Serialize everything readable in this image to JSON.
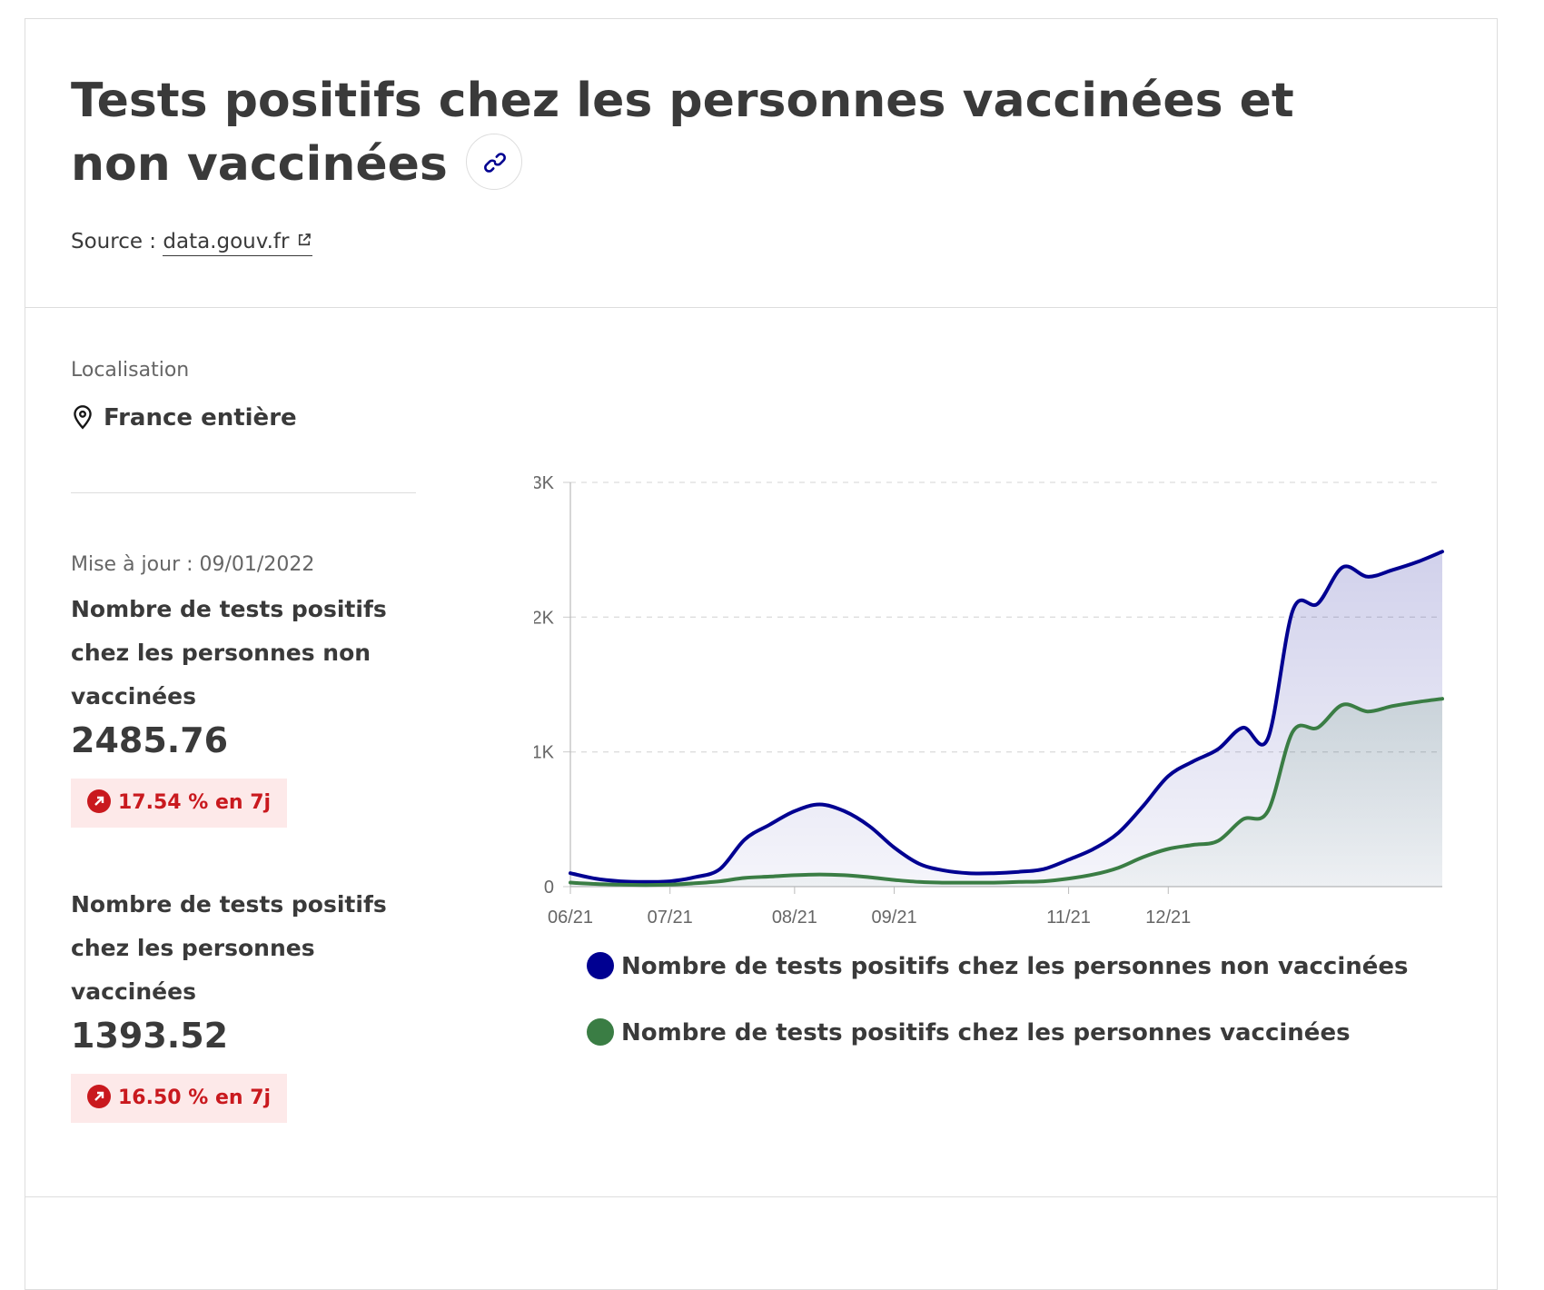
{
  "header": {
    "title": "Tests positifs chez les personnes vaccinées et non vaccinées",
    "source_prefix": "Source : ",
    "source_link": "data.gouv.fr"
  },
  "location": {
    "label": "Localisation",
    "value": "France entière"
  },
  "update": "Mise à jour : 09/01/2022",
  "stats": [
    {
      "label": "Nombre de tests positifs chez les personnes non vaccinées",
      "value": "2485.76",
      "change": "17.54 % en 7j"
    },
    {
      "label": "Nombre de tests positifs chez les personnes vaccinées",
      "value": "1393.52",
      "change": "16.50 % en 7j"
    }
  ],
  "colors": {
    "unvaccinated": "#000091",
    "vaccinated": "#3a7d44",
    "badge_red": "#c9191e"
  },
  "chart_data": {
    "type": "area",
    "ylim": [
      0,
      3000
    ],
    "y_ticks": [
      "0",
      "1K",
      "2K",
      "3K"
    ],
    "x_ticks": [
      "06/21",
      "07/21",
      "08/21",
      "09/21",
      "11/21",
      "12/21"
    ],
    "grid": true,
    "legend_position": "bottom",
    "x": [
      "06/21",
      "06/21",
      "06/21",
      "06/21",
      "07/21",
      "07/21",
      "07/21",
      "07/21",
      "07/21",
      "08/21",
      "08/21",
      "08/21",
      "08/21",
      "09/21",
      "09/21",
      "09/21",
      "10/21",
      "10/21",
      "10/21",
      "10/21",
      "11/21",
      "11/21",
      "11/21",
      "11/21",
      "12/21",
      "12/21",
      "12/21",
      "12/21",
      "12/21",
      "12/21",
      "12/21",
      "01/22",
      "01/22",
      "01/22",
      "01/22",
      "01/22"
    ],
    "series": [
      {
        "name": "Nombre de tests positifs chez les personnes non vaccinées",
        "values": [
          100,
          60,
          40,
          35,
          40,
          70,
          130,
          350,
          460,
          560,
          610,
          560,
          450,
          290,
          170,
          120,
          100,
          100,
          110,
          130,
          200,
          280,
          400,
          600,
          820,
          930,
          1020,
          1180,
          1100,
          2050,
          2100,
          2370,
          2300,
          2350,
          2410,
          2486
        ]
      },
      {
        "name": "Nombre de tests positifs chez les personnes vaccinées",
        "values": [
          30,
          20,
          15,
          12,
          15,
          25,
          40,
          65,
          75,
          85,
          90,
          85,
          70,
          50,
          35,
          30,
          30,
          30,
          35,
          40,
          60,
          90,
          140,
          220,
          280,
          310,
          340,
          500,
          560,
          1150,
          1180,
          1350,
          1300,
          1340,
          1370,
          1394
        ]
      }
    ]
  }
}
